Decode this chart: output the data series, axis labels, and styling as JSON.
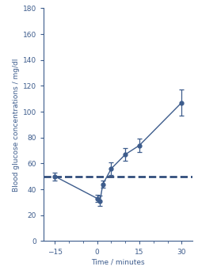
{
  "x": [
    -15,
    0,
    1,
    2,
    5,
    10,
    15,
    30
  ],
  "y": [
    50,
    33,
    31,
    44,
    56,
    67,
    74,
    107
  ],
  "yerr": [
    3,
    3,
    4,
    3,
    5,
    5,
    5,
    10
  ],
  "dashed_y": 50,
  "xlim": [
    -19,
    34
  ],
  "ylim": [
    0,
    180
  ],
  "xticks": [
    -15,
    0,
    15,
    30
  ],
  "yticks": [
    20,
    40,
    60,
    80,
    100,
    120,
    140,
    160,
    180
  ],
  "xlabel": "Time / minutes",
  "ylabel": "Blood glucose concentrations / mg/dl",
  "line_color": "#3d5c8c",
  "dashed_color": "#1e3d70",
  "marker": "o",
  "marker_size": 3.5,
  "line_width": 1.0,
  "capsize": 2.5,
  "background_color": "#ffffff",
  "tick_label_size": 6.5,
  "axis_label_size": 6.5
}
